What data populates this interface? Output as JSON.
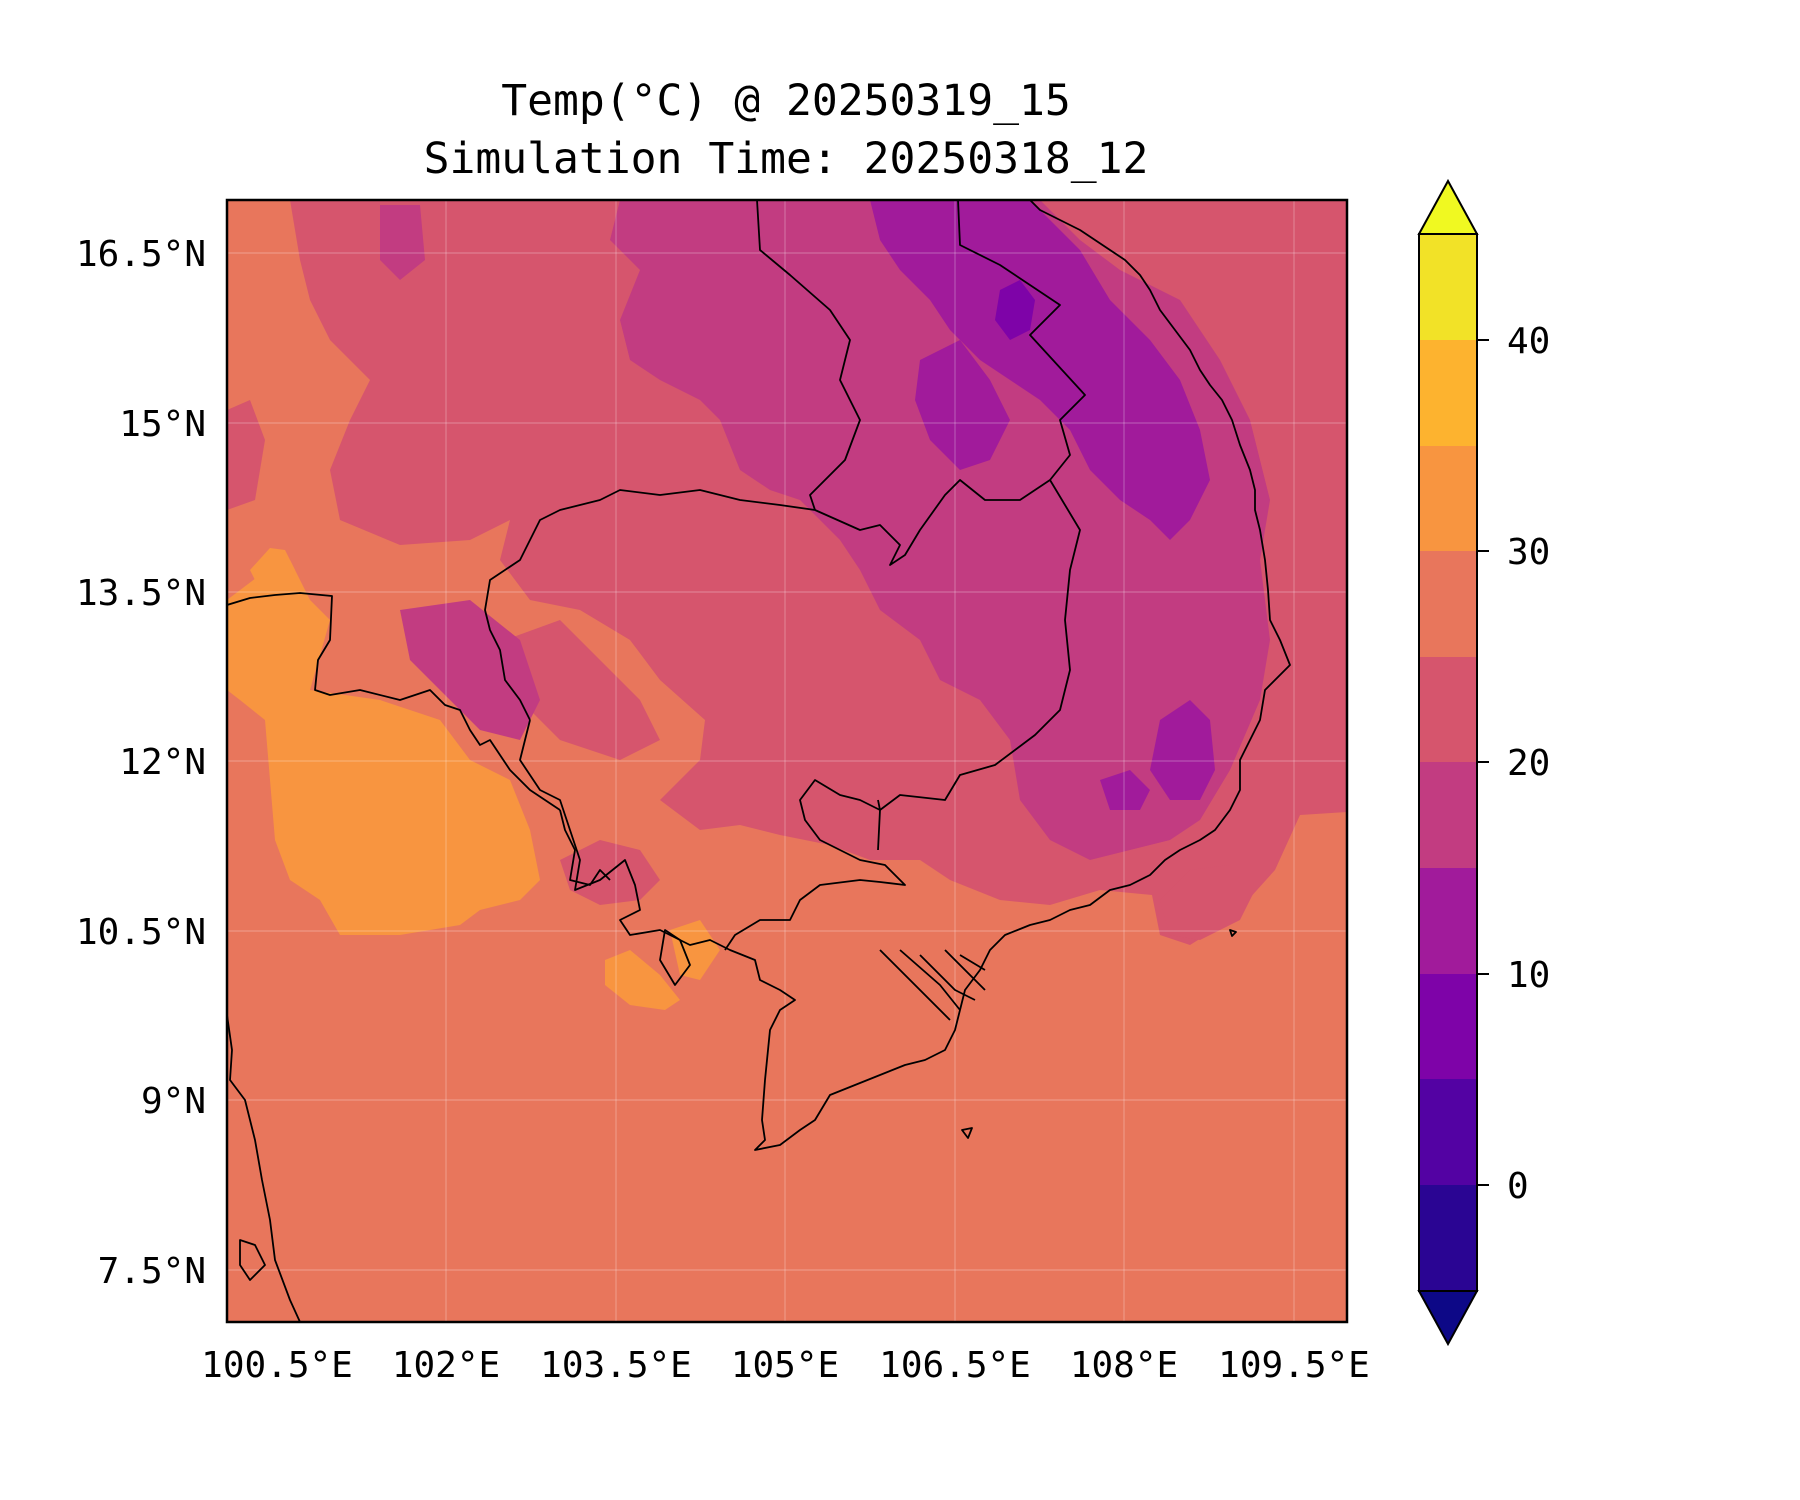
{
  "title": {
    "line1": "Temp(°C) @ 20250319_15",
    "line2": "Simulation Time: 20250318_12"
  },
  "map": {
    "lat_ticks": [
      "16.5°N",
      "15°N",
      "13.5°N",
      "12°N",
      "10.5°N",
      "9°N",
      "7.5°N"
    ],
    "lon_ticks": [
      "100.5°E",
      "102°E",
      "103.5°E",
      "105°E",
      "106.5°E",
      "108°E",
      "109.5°E"
    ],
    "lon_range": [
      100.5,
      110.4
    ],
    "lat_range": [
      7.1,
      17.0
    ],
    "gridlines": true
  },
  "colorbar": {
    "colormap": "plasma",
    "extend": "both",
    "ticks": [
      "40",
      "30",
      "20",
      "10",
      "0"
    ],
    "tick_values": [
      40,
      30,
      20,
      10,
      0
    ],
    "levels": [
      -5,
      0,
      5,
      10,
      15,
      20,
      25,
      30,
      35,
      40,
      45
    ],
    "colors": {
      "under": "#0d0887",
      "-5_0": "#2a0593",
      "0_5": "#5302a3",
      "5_10": "#7e03a8",
      "10_15": "#a11b9b",
      "15_20": "#c23c81",
      "20_25": "#d6556d",
      "25_30": "#e8765c",
      "30_35": "#f89540",
      "35_40": "#fdb32f",
      "40_45": "#f2e227",
      "over": "#f0f921"
    }
  }
}
